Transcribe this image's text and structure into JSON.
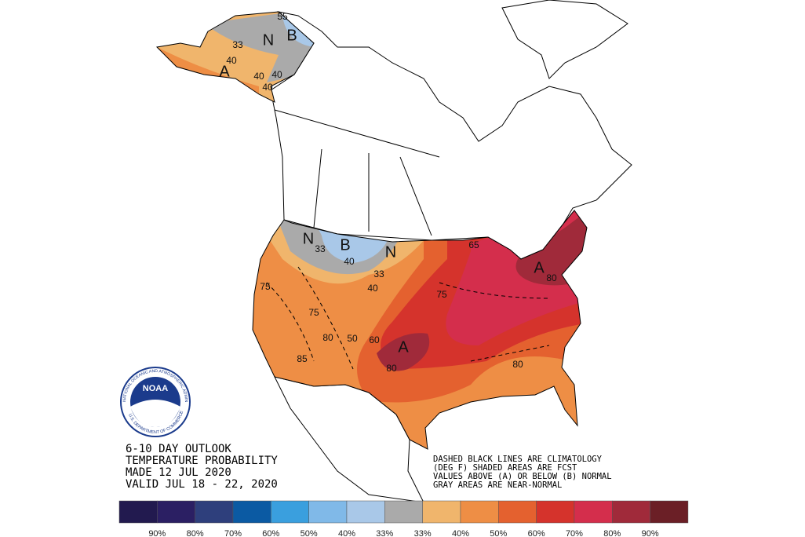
{
  "title": [
    "6-10 DAY OUTLOOK",
    "TEMPERATURE PROBABILITY",
    "MADE  12 JUL 2020",
    "VALID  JUL 18 - 22, 2020"
  ],
  "notes": [
    "DASHED BLACK LINES ARE CLIMATOLOGY",
    "(DEG F) SHADED AREAS ARE FCST",
    "VALUES ABOVE (A) OR BELOW (B) NORMAL",
    "GRAY AREAS ARE NEAR-NORMAL"
  ],
  "logo": {
    "name": "NOAA",
    "ring_top": "NATIONAL OCEANIC AND ATMOSPHERIC ADMINISTRATION",
    "ring_bottom": "U.S. DEPARTMENT OF COMMERCE"
  },
  "legend": {
    "colors": [
      "#221a4f",
      "#2b1f63",
      "#2e3f7c",
      "#0b5aa3",
      "#3a9fde",
      "#80b9e8",
      "#a9c8e8",
      "#aaaaaa",
      "#f0b56c",
      "#ee8e45",
      "#e4612f",
      "#d5332c",
      "#d42e4c",
      "#a02a3a",
      "#6b1f26"
    ],
    "labels": [
      "90%",
      "80%",
      "70%",
      "60%",
      "50%",
      "40%",
      "33%",
      "33%",
      "40%",
      "50%",
      "60%",
      "70%",
      "80%",
      "90%"
    ]
  },
  "map_labels": [
    "55",
    "33",
    "N",
    "B",
    "40",
    "A",
    "40",
    "40",
    "40",
    "N",
    "33",
    "B",
    "40",
    "N",
    "33",
    "40",
    "75",
    "75",
    "80",
    "50",
    "60",
    "A",
    "80",
    "85",
    "75",
    "65",
    "A",
    "80",
    "80"
  ]
}
